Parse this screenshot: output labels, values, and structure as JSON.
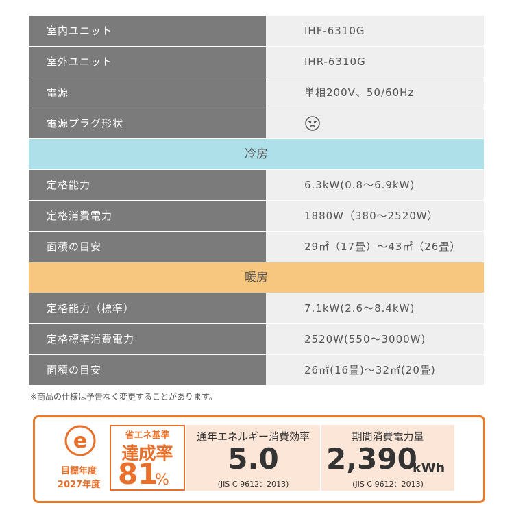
{
  "table": {
    "rows": [
      {
        "label": "室内ユニット",
        "value": "IHF-6310G"
      },
      {
        "label": "室外ユニット",
        "value": "IHR-6310G"
      },
      {
        "label": "電源",
        "value": "単相200V、50/60Hz"
      },
      {
        "label": "電源プラグ形状"
      },
      {
        "section": "冷房"
      },
      {
        "label": "定格能力",
        "value": "6.3kW(0.8～6.9kW)"
      },
      {
        "label": "定格消費電力",
        "value": "1880W（380～2520W）"
      },
      {
        "label": "面積の目安",
        "value": "29㎡（17畳）～43㎡（26畳）"
      },
      {
        "section": "暖房"
      },
      {
        "label": "定格能力（標準）",
        "value": "7.1kW(2.6～8.4kW)"
      },
      {
        "label": "定格標準消費電力",
        "value": "2520W(550～3000W)"
      },
      {
        "label": "面積の目安",
        "value": "26㎡(16畳)～32㎡(20畳)"
      }
    ]
  },
  "note": "※商品の仕様は予告なく変更することがあります。",
  "badge": {
    "logo": "e",
    "target_label": "目標年度",
    "target_year": "2027年度",
    "standard": "省エネ基準",
    "rate_label": "達成率",
    "rate": "81",
    "rate_unit": "%",
    "efficiency_title": "通年エネルギー消費効率",
    "efficiency": "5.0",
    "efficiency_note": "(JIS C 9612：2013)",
    "consumption_title": "期間消費電力量",
    "consumption": "2,390",
    "consumption_unit": "kWh",
    "consumption_note": "(JIS C 9612：2013)"
  }
}
